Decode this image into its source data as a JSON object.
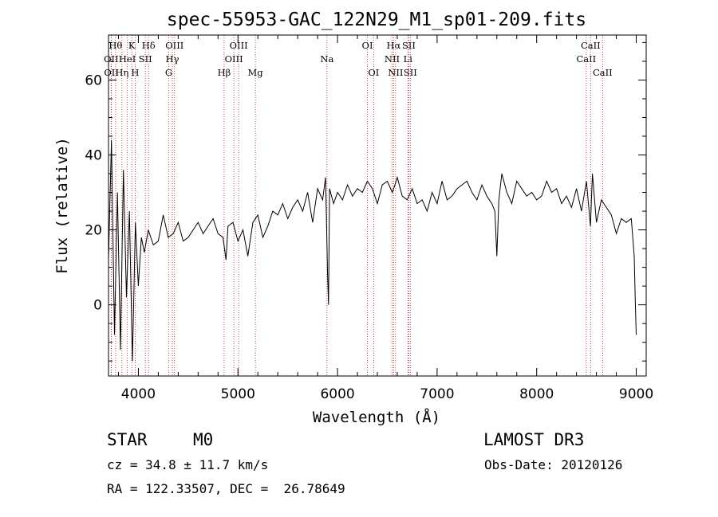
{
  "chart_data": {
    "type": "line",
    "title": "spec-55953-GAC_122N29_M1_sp01-209.fits",
    "xlabel": "Wavelength (Å)",
    "ylabel": "Flux (relative)",
    "xlim": [
      3700,
      9100
    ],
    "ylim": [
      -19,
      72
    ],
    "xticks": [
      4000,
      5000,
      6000,
      7000,
      8000,
      9000
    ],
    "yticks": [
      0,
      20,
      40,
      60
    ],
    "grid": false,
    "series": [
      {
        "name": "flux",
        "x": [
          3700,
          3730,
          3760,
          3790,
          3820,
          3850,
          3880,
          3910,
          3940,
          3970,
          4000,
          4030,
          4060,
          4100,
          4150,
          4200,
          4250,
          4300,
          4350,
          4400,
          4450,
          4500,
          4550,
          4600,
          4650,
          4700,
          4750,
          4800,
          4850,
          4880,
          4900,
          4950,
          5000,
          5050,
          5100,
          5150,
          5200,
          5250,
          5300,
          5350,
          5400,
          5450,
          5500,
          5550,
          5600,
          5650,
          5700,
          5750,
          5800,
          5850,
          5880,
          5900,
          5910,
          5920,
          5940,
          5960,
          6000,
          6050,
          6100,
          6150,
          6200,
          6250,
          6300,
          6350,
          6400,
          6450,
          6500,
          6550,
          6564,
          6600,
          6650,
          6700,
          6750,
          6800,
          6850,
          6900,
          6950,
          7000,
          7050,
          7100,
          7150,
          7200,
          7250,
          7300,
          7350,
          7400,
          7450,
          7500,
          7550,
          7580,
          7600,
          7620,
          7650,
          7700,
          7750,
          7800,
          7850,
          7900,
          7950,
          8000,
          8050,
          8100,
          8150,
          8200,
          8250,
          8300,
          8350,
          8400,
          8450,
          8500,
          8520,
          8540,
          8560,
          8600,
          8650,
          8700,
          8750,
          8800,
          8850,
          8900,
          8950,
          8980,
          8990,
          9000
        ],
        "values": [
          12,
          44,
          -8,
          30,
          -12,
          36,
          2,
          25,
          -15,
          22,
          5,
          18,
          14,
          20,
          16,
          17,
          24,
          18,
          19,
          22,
          17,
          18,
          20,
          22,
          19,
          21,
          23,
          19,
          18,
          12,
          21,
          22,
          17,
          20,
          13,
          22,
          24,
          18,
          21,
          25,
          24,
          27,
          23,
          26,
          28,
          25,
          30,
          22,
          31,
          28,
          34,
          8,
          0,
          31,
          29,
          27,
          30,
          28,
          32,
          29,
          31,
          30,
          33,
          31,
          27,
          32,
          33,
          30,
          31,
          34,
          29,
          28,
          31,
          27,
          28,
          25,
          30,
          27,
          33,
          28,
          29,
          31,
          32,
          33,
          30,
          28,
          32,
          29,
          27,
          25,
          13,
          28,
          35,
          30,
          27,
          33,
          31,
          29,
          30,
          28,
          29,
          33,
          30,
          31,
          27,
          29,
          26,
          31,
          25,
          33,
          27,
          21,
          35,
          22,
          28,
          26,
          24,
          19,
          23,
          22,
          23,
          13,
          1,
          -8
        ]
      }
    ],
    "lines": [
      {
        "name": "OII",
        "x": 3727,
        "label_row": 2
      },
      {
        "name": "OII",
        "x": 3729,
        "label_row": 3
      },
      {
        "name": "Hθ",
        "x": 3771,
        "label_row": 1
      },
      {
        "name": "Hη",
        "x": 3835,
        "label_row": 3
      },
      {
        "name": "HeI",
        "x": 3889,
        "label_row": 2
      },
      {
        "name": "K",
        "x": 3934,
        "label_row": 1
      },
      {
        "name": "H",
        "x": 3968,
        "label_row": 3
      },
      {
        "name": "SII",
        "x": 4070,
        "label_row": 2
      },
      {
        "name": "Hδ",
        "x": 4102,
        "label_row": 1
      },
      {
        "name": "G",
        "x": 4305,
        "label_row": 3
      },
      {
        "name": "Hγ",
        "x": 4341,
        "label_row": 2
      },
      {
        "name": "OIII",
        "x": 4363,
        "label_row": 1
      },
      {
        "name": "Hβ",
        "x": 4861,
        "label_row": 3
      },
      {
        "name": "OIII",
        "x": 4959,
        "label_row": 2
      },
      {
        "name": "OIII",
        "x": 5007,
        "label_row": 1
      },
      {
        "name": "Mg",
        "x": 5175,
        "label_row": 3
      },
      {
        "name": "Na",
        "x": 5894,
        "label_row": 2
      },
      {
        "name": "OI",
        "x": 6300,
        "label_row": 1
      },
      {
        "name": "OI",
        "x": 6363,
        "label_row": 3
      },
      {
        "name": "NII",
        "x": 6548,
        "label_row": 2
      },
      {
        "name": "Hα",
        "x": 6563,
        "label_row": 1
      },
      {
        "name": "NII",
        "x": 6583,
        "label_row": 3
      },
      {
        "name": "Li",
        "x": 6707,
        "label_row": 2
      },
      {
        "name": "SII",
        "x": 6716,
        "label_row": 1
      },
      {
        "name": "SII",
        "x": 6731,
        "label_row": 3
      },
      {
        "name": "CaII",
        "x": 8498,
        "label_row": 2
      },
      {
        "name": "CaII",
        "x": 8542,
        "label_row": 1
      },
      {
        "name": "CaII",
        "x": 8662,
        "label_row": 3
      }
    ]
  },
  "info": {
    "class": "STAR",
    "subclass": "M0",
    "survey": "LAMOST DR3",
    "cz": "cz = 34.8 ± 11.7 km/s",
    "obsdate": "Obs-Date: 20120126",
    "coords": "RA = 122.33507, DEC =  26.78649"
  }
}
